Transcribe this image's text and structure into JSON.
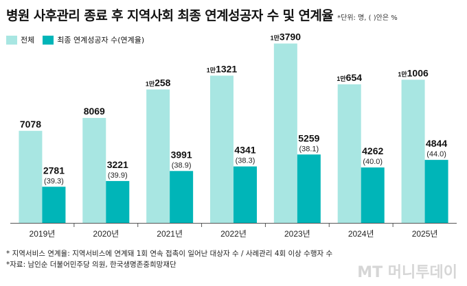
{
  "header": {
    "title": "병원 사후관리 종료 후 지역사회 최종 연계성공자 수 및 연계율",
    "unit_note": "*단위: 명, (  )안은 %"
  },
  "footnotes": [
    "* 지역서비스 연계율: 지역서비스에 연계돼 1회 연속 접촉이 일어난 대상자 수 / 사례관리 4회 이상 수행자 수",
    "*자료: 남인순 더불어민주당 의원, 한국생명존중희망재단"
  ],
  "watermark": "MT 머니투데이",
  "chart_data": {
    "type": "bar",
    "categories": [
      "2019년",
      "2020년",
      "2021년",
      "2022년",
      "2023년",
      "2024년",
      "2025년"
    ],
    "series": [
      {
        "name": "전체",
        "color": "#a8e6e2",
        "values": [
          7078,
          8069,
          10258,
          11321,
          13790,
          10654,
          11006
        ],
        "labels": [
          {
            "man": "",
            "rest": "7078"
          },
          {
            "man": "",
            "rest": "8069"
          },
          {
            "man": "1만",
            "rest": "258"
          },
          {
            "man": "1만",
            "rest": "1321"
          },
          {
            "man": "1만",
            "rest": "3790"
          },
          {
            "man": "1만",
            "rest": "654"
          },
          {
            "man": "1만",
            "rest": "1006"
          }
        ]
      },
      {
        "name": "최종 연계성공자 수(연계율)",
        "color": "#00b5b8",
        "values": [
          2781,
          3221,
          3991,
          4341,
          5259,
          4262,
          4844
        ],
        "rates": [
          "(39.3)",
          "(39.9)",
          "(38.9)",
          "(38.3)",
          "(38.1)",
          "(40.0)",
          "(44.0)"
        ]
      }
    ],
    "ylim": [
      0,
      14500
    ],
    "grid": false,
    "legend_position": "top-left"
  }
}
